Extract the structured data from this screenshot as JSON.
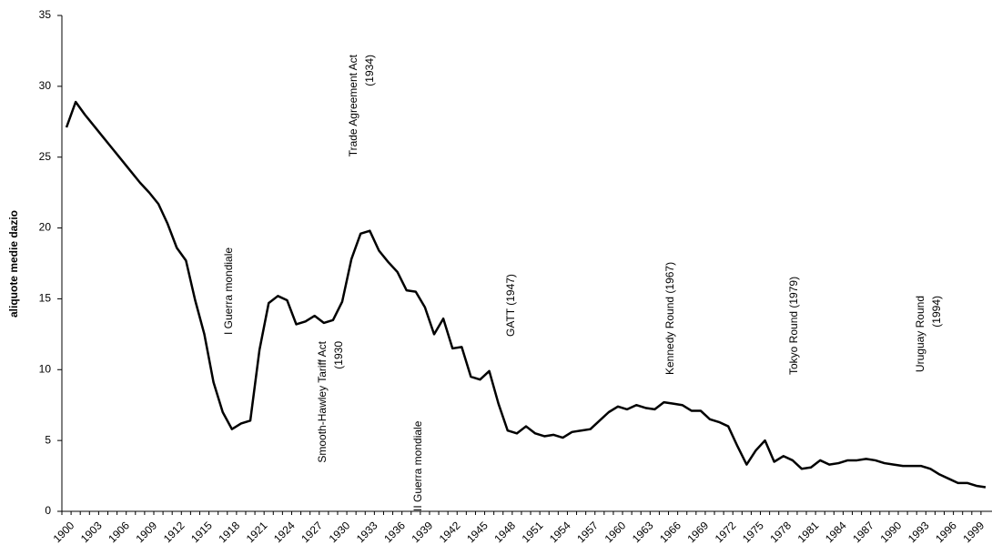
{
  "chart_data": {
    "type": "line",
    "y_label": "aliquote medie dazio",
    "categories": [
      "1900",
      null,
      null,
      "1903",
      null,
      null,
      "1906",
      null,
      null,
      "1909",
      null,
      null,
      "1912",
      null,
      null,
      "1915",
      null,
      null,
      "1918",
      null,
      null,
      "1921",
      null,
      null,
      "1924",
      null,
      null,
      "1927",
      null,
      null,
      "1930",
      null,
      null,
      "1933",
      null,
      null,
      "1936",
      null,
      null,
      "1939",
      null,
      null,
      "1942",
      null,
      null,
      "1945",
      null,
      null,
      "1948",
      null,
      null,
      "1951",
      null,
      null,
      "1954",
      null,
      null,
      "1957",
      null,
      null,
      "1960",
      null,
      null,
      "1963",
      null,
      null,
      "1966",
      null,
      null,
      "1969",
      null,
      null,
      "1972",
      null,
      null,
      "1975",
      null,
      null,
      "1978",
      null,
      null,
      "1981",
      null,
      null,
      "1984",
      null,
      null,
      "1987",
      null,
      null,
      "1990",
      null,
      null,
      "1993",
      null,
      null,
      "1996",
      null,
      null,
      "1999",
      null
    ],
    "values": [
      27.1,
      28.9,
      28.0,
      27.2,
      26.4,
      25.6,
      24.8,
      24.0,
      23.2,
      22.5,
      21.7,
      20.3,
      18.6,
      17.7,
      14.9,
      12.5,
      9.1,
      7.0,
      5.8,
      6.2,
      6.4,
      11.4,
      14.7,
      15.2,
      14.9,
      13.2,
      13.4,
      13.8,
      13.3,
      13.5,
      14.8,
      17.8,
      19.6,
      19.8,
      18.4,
      17.6,
      16.9,
      15.6,
      15.5,
      14.4,
      12.5,
      13.6,
      11.5,
      11.6,
      9.5,
      9.3,
      9.9,
      7.6,
      5.7,
      5.5,
      6.0,
      5.5,
      5.3,
      5.4,
      5.2,
      5.6,
      5.7,
      5.8,
      6.4,
      7.0,
      7.4,
      7.2,
      7.5,
      7.3,
      7.2,
      7.7,
      7.6,
      7.5,
      7.1,
      7.1,
      6.5,
      6.3,
      6.0,
      4.6,
      3.3,
      4.3,
      5.0,
      3.5,
      3.9,
      3.6,
      3.0,
      3.1,
      3.6,
      3.3,
      3.4,
      3.6,
      3.6,
      3.7,
      3.6,
      3.4,
      3.3,
      3.2,
      3.2,
      3.2,
      3.0,
      2.6,
      2.3,
      2.0,
      2.0,
      1.8,
      1.7
    ],
    "color": "#000000",
    "ylim": [
      0,
      35
    ],
    "yticks": [
      0,
      5,
      10,
      15,
      20,
      25,
      30,
      35
    ],
    "annotations": [
      {
        "lines": [
          "I Guerra mondiale"
        ]
      },
      {
        "lines": [
          "Smooth-Hawley Tariff Act",
          "(1930"
        ]
      },
      {
        "lines": [
          "Trade Agreement Act",
          "(1934)"
        ]
      },
      {
        "lines": [
          "II Guerra mondiale"
        ]
      },
      {
        "lines": [
          "GATT (1947)"
        ]
      },
      {
        "lines": [
          "Kennedy Round (1967)"
        ]
      },
      {
        "lines": [
          "Tokyo Round (1979)"
        ]
      },
      {
        "lines": [
          "Uruguay Round",
          "(1994)"
        ]
      }
    ]
  }
}
